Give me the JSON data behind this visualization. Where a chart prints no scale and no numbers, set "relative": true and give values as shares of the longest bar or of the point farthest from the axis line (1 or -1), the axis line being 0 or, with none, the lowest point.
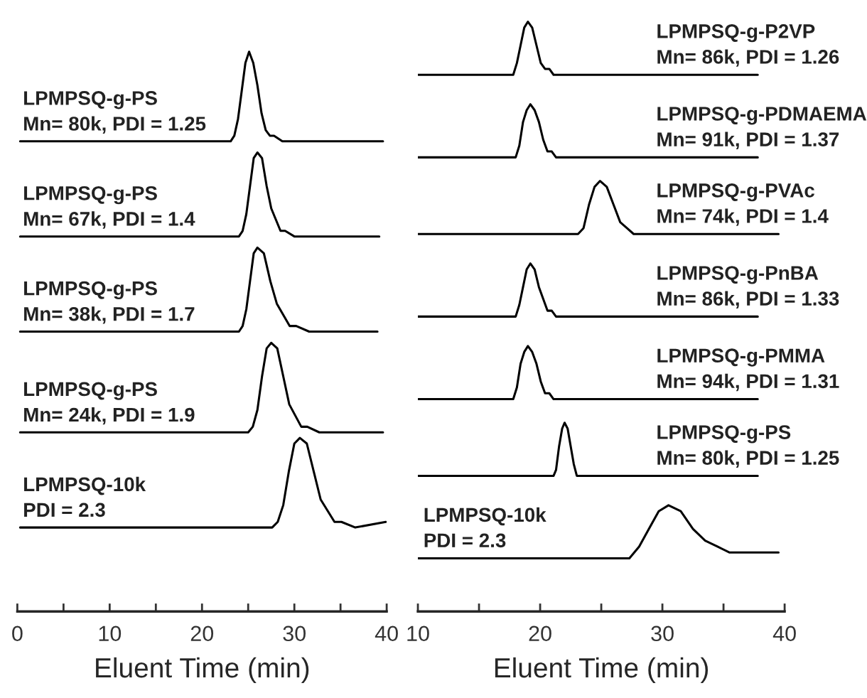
{
  "chart_data": [
    {
      "type": "line",
      "relative": true,
      "xlabel": "Eluent Time (min)",
      "xlim": [
        0,
        40
      ],
      "tick_labels": "x",
      "xticks": [
        0,
        {
          "value": 5,
          "label": null
        },
        10,
        {
          "value": 15,
          "label": null
        },
        20,
        {
          "value": 25,
          "label": null
        },
        30,
        {
          "value": 35,
          "label": null
        },
        40
      ],
      "series": [
        {
          "name": "LPMPSQ-g-PS\nMn= 80k, PDI = 1.25",
          "color": "#000000",
          "x": [
            0.3,
            23.1,
            23.5,
            23.9,
            24.3,
            24.7,
            25.1,
            25.55,
            26.0,
            26.45,
            26.9,
            27.35,
            27.8,
            28.7,
            39.6
          ],
          "values": [
            0.84,
            0.84,
            0.85,
            0.88,
            0.93,
            0.98,
            1.0,
            0.98,
            0.94,
            0.89,
            0.86,
            0.85,
            0.85,
            0.84,
            0.84
          ]
        },
        {
          "name": "LPMPSQ-g-PS\nMn= 67k, PDI = 1.4",
          "color": "#000000",
          "x": [
            0.3,
            24.0,
            24.4,
            24.8,
            25.2,
            25.6,
            26.0,
            26.5,
            27.0,
            27.5,
            28.0,
            28.5,
            29.0,
            30.0,
            39.2
          ],
          "values": [
            0.67,
            0.67,
            0.68,
            0.71,
            0.76,
            0.81,
            0.82,
            0.81,
            0.76,
            0.72,
            0.7,
            0.68,
            0.68,
            0.67,
            0.67
          ]
        },
        {
          "name": "LPMPSQ-g-PS\nMn= 38k, PDI = 1.7",
          "color": "#000000",
          "x": [
            0.3,
            24.0,
            24.4,
            24.8,
            25.2,
            25.6,
            26.0,
            26.7,
            27.4,
            28.1,
            28.8,
            29.5,
            30.2,
            31.6,
            39.0
          ],
          "values": [
            0.5,
            0.5,
            0.51,
            0.54,
            0.59,
            0.64,
            0.65,
            0.64,
            0.59,
            0.55,
            0.53,
            0.51,
            0.51,
            0.5,
            0.5
          ]
        },
        {
          "name": "LPMPSQ-g-PS\nMn= 24k, PDI = 1.9",
          "color": "#000000",
          "x": [
            0.3,
            25.0,
            25.5,
            26.0,
            26.5,
            27.0,
            27.5,
            28.15,
            28.8,
            29.45,
            30.1,
            30.75,
            31.4,
            32.7,
            39.6
          ],
          "values": [
            0.32,
            0.32,
            0.33,
            0.36,
            0.42,
            0.47,
            0.48,
            0.47,
            0.42,
            0.37,
            0.35,
            0.33,
            0.33,
            0.32,
            0.32
          ]
        },
        {
          "name": "LPMPSQ-10k\nPDI = 2.3",
          "color": "#000000",
          "x": [
            0.3,
            27.6,
            28.2,
            28.8,
            29.4,
            30.0,
            30.6,
            31.35,
            32.1,
            32.85,
            33.6,
            34.35,
            35.1,
            36.6,
            39.9
          ],
          "values": [
            0.15,
            0.15,
            0.16,
            0.19,
            0.25,
            0.3,
            0.31,
            0.3,
            0.25,
            0.2,
            0.18,
            0.16,
            0.16,
            0.15,
            0.16
          ]
        }
      ]
    },
    {
      "type": "line",
      "relative": true,
      "xlabel": "Eluent Time (min)",
      "xlim": [
        10,
        40
      ],
      "tick_labels": "x",
      "xticks": [
        10,
        {
          "value": 15,
          "label": null
        },
        20,
        {
          "value": 25,
          "label": null
        },
        30,
        {
          "value": 35,
          "label": null
        },
        40
      ],
      "series": [
        {
          "name": "LPMPSQ-g-P2VP\nMn= 86k, PDI = 1.26",
          "color": "#000000",
          "x": [
            10.0,
            17.5,
            17.8,
            18.1,
            18.4,
            18.7,
            19.0,
            19.35,
            19.7,
            20.05,
            20.4,
            20.75,
            21.1,
            21.8,
            37.8
          ],
          "values": [
            0.91,
            0.91,
            0.91,
            0.93,
            0.96,
            0.99,
            1.0,
            0.99,
            0.96,
            0.93,
            0.92,
            0.92,
            0.91,
            0.91,
            0.91
          ]
        },
        {
          "name": "LPMPSQ-g-PDMAEMA\nMn= 91k, PDI = 1.37",
          "color": "#000000",
          "x": [
            10.0,
            17.7,
            18.0,
            18.3,
            18.6,
            18.9,
            19.2,
            19.55,
            19.9,
            20.25,
            20.6,
            20.95,
            21.3,
            22.0,
            37.8
          ],
          "values": [
            0.77,
            0.77,
            0.77,
            0.79,
            0.83,
            0.85,
            0.86,
            0.85,
            0.83,
            0.8,
            0.78,
            0.78,
            0.77,
            0.77,
            0.77
          ]
        },
        {
          "name": "LPMPSQ-g-PVAc\nMn= 74k, PDI = 1.4",
          "color": "#000000",
          "x": [
            10.0,
            22.65,
            23.1,
            23.55,
            24.0,
            24.45,
            24.9,
            25.45,
            26.0,
            26.55,
            27.1,
            27.65,
            28.2,
            29.3,
            39.5
          ],
          "values": [
            0.64,
            0.64,
            0.64,
            0.65,
            0.69,
            0.72,
            0.73,
            0.72,
            0.69,
            0.66,
            0.65,
            0.64,
            0.64,
            0.64,
            0.64
          ]
        },
        {
          "name": "LPMPSQ-g-PnBA\nMn= 86k, PDI = 1.33",
          "color": "#000000",
          "x": [
            10.0,
            17.7,
            18.0,
            18.3,
            18.6,
            18.9,
            19.2,
            19.55,
            19.9,
            20.25,
            20.6,
            20.95,
            21.3,
            22.0,
            37.8
          ],
          "values": [
            0.5,
            0.5,
            0.5,
            0.52,
            0.55,
            0.58,
            0.59,
            0.58,
            0.55,
            0.53,
            0.51,
            0.51,
            0.5,
            0.5,
            0.5
          ]
        },
        {
          "name": "LPMPSQ-g-PMMA\nMn= 94k, PDI = 1.31",
          "color": "#000000",
          "x": [
            10.0,
            17.5,
            17.8,
            18.1,
            18.4,
            18.7,
            19.0,
            19.35,
            19.7,
            20.05,
            20.4,
            20.75,
            21.1,
            21.8,
            37.8
          ],
          "values": [
            0.36,
            0.36,
            0.36,
            0.38,
            0.42,
            0.44,
            0.45,
            0.44,
            0.42,
            0.39,
            0.37,
            0.37,
            0.36,
            0.36,
            0.36
          ]
        },
        {
          "name": "LPMPSQ-g-PS\nMn= 80k, PDI = 1.25",
          "color": "#000000",
          "x": [
            10.0,
            20.9,
            21.1,
            21.3,
            21.55,
            21.8,
            22.0,
            22.25,
            22.5,
            22.75,
            23.0,
            23.25,
            23.5,
            24.0,
            37.8
          ],
          "values": [
            0.23,
            0.23,
            0.23,
            0.24,
            0.28,
            0.31,
            0.32,
            0.31,
            0.28,
            0.25,
            0.23,
            0.23,
            0.23,
            0.23,
            0.23
          ]
        },
        {
          "name": "LPMPSQ-10k\nPDI = 2.3",
          "color": "#000000",
          "x": [
            10.0,
            26.5,
            27.3,
            28.1,
            28.9,
            29.7,
            30.5,
            31.5,
            32.5,
            33.5,
            34.5,
            35.5,
            36.5,
            38.5,
            39.5
          ],
          "values": [
            0.09,
            0.09,
            0.09,
            0.11,
            0.14,
            0.17,
            0.18,
            0.17,
            0.14,
            0.12,
            0.11,
            0.1,
            0.1,
            0.1,
            0.1
          ]
        }
      ]
    }
  ]
}
